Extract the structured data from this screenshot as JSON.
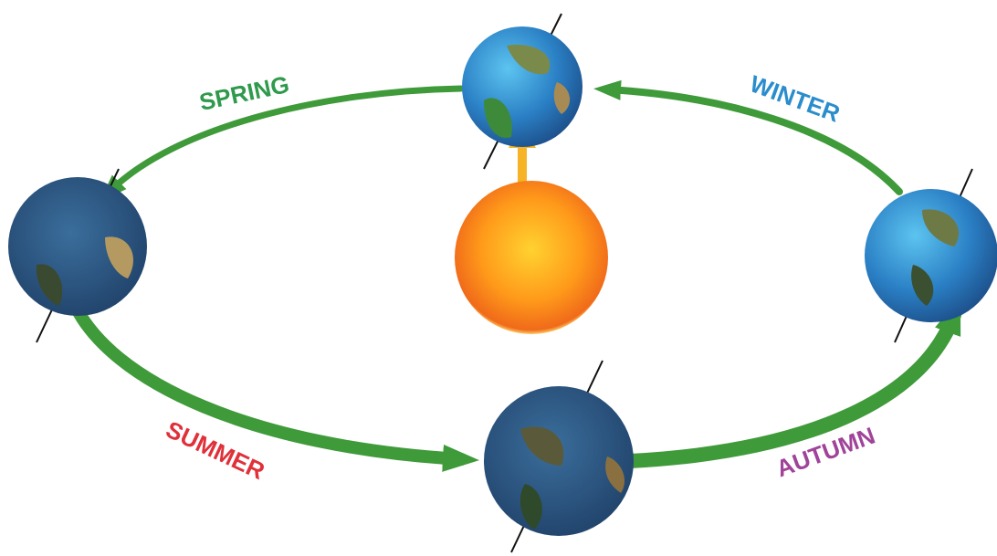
{
  "seasons": [
    {
      "label": "SPRING"
    },
    {
      "label": "WINTER"
    },
    {
      "label": "SUMMER"
    },
    {
      "label": "AUTUMN"
    }
  ]
}
